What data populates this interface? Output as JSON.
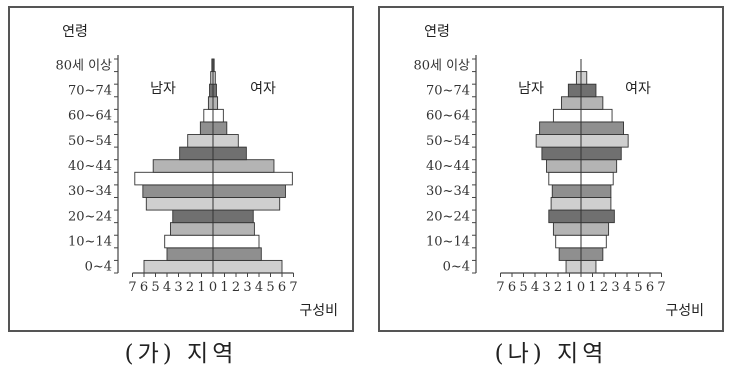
{
  "chart_data": [
    {
      "type": "population-pyramid",
      "region_label": "(가) 지역",
      "ylabel": "연령",
      "xlabel": "구성비",
      "male_label": "남자",
      "female_label": "여자",
      "age_groups": [
        "0~4",
        "5~9",
        "10~14",
        "15~19",
        "20~24",
        "25~29",
        "30~34",
        "35~39",
        "40~44",
        "45~49",
        "50~54",
        "55~59",
        "60~64",
        "65~69",
        "70~74",
        "75~79",
        "80세 이상"
      ],
      "y_tick_labels": [
        "0~4",
        "10~14",
        "20~24",
        "30~34",
        "40~44",
        "50~54",
        "60~64",
        "70~74",
        "80세 이상"
      ],
      "xlim": [
        -7,
        7
      ],
      "x_tick_labels": [
        "7",
        "6",
        "5",
        "4",
        "3",
        "2",
        "1",
        "0",
        "1",
        "2",
        "3",
        "4",
        "5",
        "6",
        "7"
      ],
      "series": [
        {
          "name": "남자",
          "values": [
            6.0,
            4.0,
            4.2,
            3.7,
            3.5,
            5.8,
            6.1,
            6.8,
            5.2,
            2.9,
            2.2,
            1.1,
            0.8,
            0.4,
            0.3,
            0.2,
            0.1
          ]
        },
        {
          "name": "여자",
          "values": [
            6.0,
            4.2,
            4.0,
            3.6,
            3.5,
            5.8,
            6.3,
            6.9,
            5.3,
            2.9,
            2.2,
            1.2,
            0.9,
            0.4,
            0.3,
            0.2,
            0.1
          ]
        }
      ]
    },
    {
      "type": "population-pyramid",
      "region_label": "(나) 지역",
      "ylabel": "연령",
      "xlabel": "구성비",
      "male_label": "남자",
      "female_label": "여자",
      "age_groups": [
        "0~4",
        "5~9",
        "10~14",
        "15~19",
        "20~24",
        "25~29",
        "30~34",
        "35~39",
        "40~44",
        "45~49",
        "50~54",
        "55~59",
        "60~64",
        "65~69",
        "70~74",
        "75~79",
        "80세 이상"
      ],
      "y_tick_labels": [
        "0~4",
        "10~14",
        "20~24",
        "30~34",
        "40~44",
        "50~54",
        "60~64",
        "70~74",
        "80세 이상"
      ],
      "xlim": [
        -7,
        7
      ],
      "x_tick_labels": [
        "7",
        "6",
        "5",
        "4",
        "3",
        "2",
        "1",
        "0",
        "1",
        "2",
        "3",
        "4",
        "5",
        "6",
        "7"
      ],
      "series": [
        {
          "name": "남자",
          "values": [
            1.3,
            1.9,
            2.2,
            2.4,
            2.8,
            2.6,
            2.5,
            2.8,
            3.0,
            3.4,
            3.9,
            3.6,
            2.4,
            1.7,
            1.1,
            0.4,
            0
          ]
        },
        {
          "name": "여자",
          "values": [
            1.3,
            1.9,
            2.2,
            2.4,
            2.9,
            2.6,
            2.6,
            2.8,
            3.1,
            3.5,
            4.1,
            3.7,
            2.7,
            1.9,
            1.3,
            0.5,
            0
          ]
        }
      ]
    }
  ]
}
